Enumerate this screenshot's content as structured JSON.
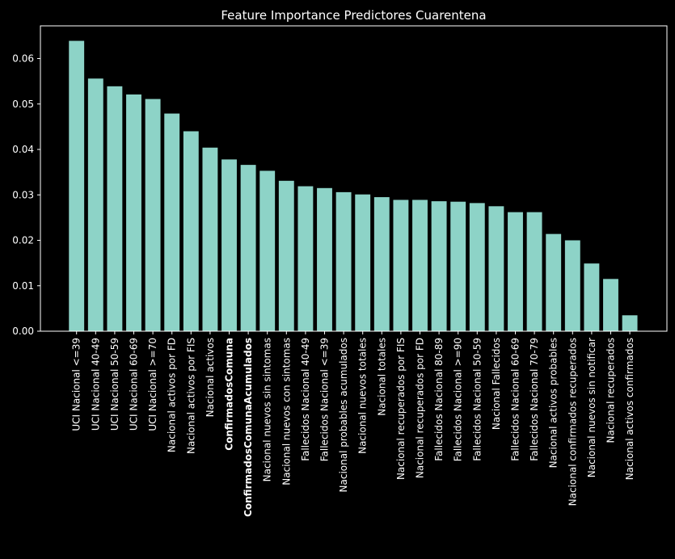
{
  "chart_data": {
    "type": "bar",
    "title": "Feature Importance Predictores Cuarentena",
    "xlabel": "",
    "ylabel": "",
    "ylim": [
      0,
      0.0672
    ],
    "yticks": [
      0.0,
      0.01,
      0.02,
      0.03,
      0.04,
      0.05,
      0.06
    ],
    "ytick_labels": [
      "0.00",
      "0.01",
      "0.02",
      "0.03",
      "0.04",
      "0.05",
      "0.06"
    ],
    "grid": false,
    "bar_color": "#8dd3c7",
    "background_color": "#000000",
    "text_color": "#ffffff",
    "bold_categories": [
      "ConfirmadosComuna",
      "ConfirmadosComunaAcumulados"
    ],
    "categories": [
      "UCI Nacional <=39",
      "UCI Nacional 40-49",
      "UCI Nacional 50-59",
      "UCI Nacional 60-69",
      "UCI Nacional >=70",
      "Nacional activos por FD",
      "Nacional activos por FIS",
      "Nacional activos",
      "ConfirmadosComuna",
      "ConfirmadosComunaAcumulados",
      "Nacional nuevos sin sintomas",
      "Nacional nuevos con sintomas",
      "Fallecidos Nacional 40-49",
      "Fallecidos Nacional <=39",
      "Nacional probables acumulados",
      "Nacional nuevos totales",
      "Nacional totales",
      "Nacional recuperados por FIS",
      "Nacional recuperados por FD",
      "Fallecidos Nacional 80-89",
      "Fallecidos Nacional >=90",
      "Fallecidos Nacional 50-59",
      "Nacional Fallecidos",
      "Fallecidos Nacional 60-69",
      "Fallecidos Nacional 70-79",
      "Nacional activos probables",
      "Nacional confirmados recuperados",
      "Nacional nuevos sin notificar",
      "Nacional recuperados",
      "Nacional activos confirmados"
    ],
    "values": [
      0.0639,
      0.0556,
      0.0539,
      0.0521,
      0.0511,
      0.0479,
      0.044,
      0.0404,
      0.0378,
      0.0366,
      0.0353,
      0.0331,
      0.0319,
      0.0315,
      0.0306,
      0.0301,
      0.0295,
      0.0289,
      0.0289,
      0.0286,
      0.0285,
      0.0282,
      0.0275,
      0.0262,
      0.0262,
      0.0214,
      0.02,
      0.0149,
      0.0115,
      0.0035
    ]
  }
}
